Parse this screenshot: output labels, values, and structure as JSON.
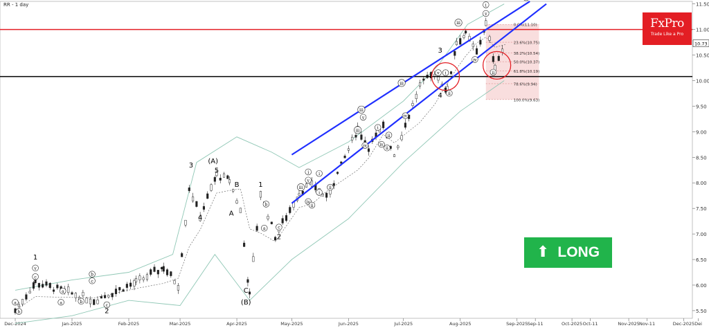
{
  "title": "RR - 1 day",
  "brand": {
    "name": "FxPro",
    "tagline": "Trade Like a Pro",
    "color": "#e31e24"
  },
  "signal": {
    "label": "LONG",
    "arrow": "⬆",
    "color": "#21b44b"
  },
  "chart_data": {
    "type": "candlestick",
    "title": "RR - 1 day",
    "x_labels": [
      "Dec-2024",
      "Jan-2025",
      "Feb-2025",
      "Mar-2025",
      "Apr-2025",
      "May-2025",
      "Jun-2025",
      "Jul-2025",
      "Aug-2025",
      "Sep-2025",
      "Sep-11",
      "Oct-2025",
      "Oct-11",
      "Nov-2025",
      "Nov-11",
      "Dec-2025",
      "Dei"
    ],
    "x_label_days": [
      0,
      31,
      62,
      90,
      121,
      151,
      182,
      212,
      243,
      274,
      284,
      304,
      314,
      335,
      345,
      365,
      373
    ],
    "y_ticks": [
      "11.50",
      "11.00",
      "10.50",
      "10.00",
      "9.50",
      "9.00",
      "8.50",
      "8.00",
      "7.50",
      "7.00",
      "6.50",
      "6.00",
      "5.50"
    ],
    "ylim": [
      5.35,
      11.55
    ],
    "last_price": "10.73",
    "key_points": [
      {
        "date": "2024-12-01",
        "price": 5.5
      },
      {
        "date": "2024-12-12",
        "price": 6.05
      },
      {
        "date": "2025-01-13",
        "price": 5.7
      },
      {
        "date": "2025-02-05",
        "price": 6.05
      },
      {
        "date": "2025-02-20",
        "price": 6.35
      },
      {
        "date": "2025-02-28",
        "price": 6.0
      },
      {
        "date": "2025-03-06",
        "price": 7.9
      },
      {
        "date": "2025-03-12",
        "price": 7.35
      },
      {
        "date": "2025-03-21",
        "price": 8.15
      },
      {
        "date": "2025-03-28",
        "price": 8.05
      },
      {
        "date": "2025-04-03",
        "price": 7.45
      },
      {
        "date": "2025-04-08",
        "price": 5.8
      },
      {
        "date": "2025-04-14",
        "price": 7.8
      },
      {
        "date": "2025-04-22",
        "price": 6.95
      },
      {
        "date": "2025-05-05",
        "price": 7.8
      },
      {
        "date": "2025-05-12",
        "price": 8.0
      },
      {
        "date": "2025-05-20",
        "price": 7.7
      },
      {
        "date": "2025-06-06",
        "price": 9.05
      },
      {
        "date": "2025-06-12",
        "price": 8.7
      },
      {
        "date": "2025-06-20",
        "price": 9.1
      },
      {
        "date": "2025-06-26",
        "price": 8.55
      },
      {
        "date": "2025-07-10",
        "price": 9.9
      },
      {
        "date": "2025-07-18",
        "price": 10.15
      },
      {
        "date": "2025-07-25",
        "price": 9.8
      },
      {
        "date": "2025-07-30",
        "price": 10.75
      },
      {
        "date": "2025-08-04",
        "price": 10.9
      },
      {
        "date": "2025-08-10",
        "price": 10.55
      },
      {
        "date": "2025-08-15",
        "price": 11.1
      },
      {
        "date": "2025-08-20",
        "price": 10.3
      },
      {
        "date": "2025-08-26",
        "price": 10.73
      }
    ],
    "horizontal_levels": [
      {
        "price": 11.0,
        "color": "#e31e24"
      },
      {
        "price": 10.08,
        "color": "#000000"
      }
    ],
    "fibonacci": {
      "start_date": "2025-08-15",
      "end_date": "2025-09-13",
      "levels": [
        {
          "label": "0.0%(11.10)",
          "price": 11.1
        },
        {
          "label": "23.6%(10.75)",
          "price": 10.75
        },
        {
          "label": "38.2%(10.54)",
          "price": 10.54
        },
        {
          "label": "50.0%(10.37)",
          "price": 10.37
        },
        {
          "label": "61.8%(10.19)",
          "price": 10.19
        },
        {
          "label": "78.6%(9.94)",
          "price": 9.94
        },
        {
          "label": "100.0%(9.63)",
          "price": 9.63
        }
      ]
    },
    "channel": {
      "color": "#1f2fff",
      "upper": [
        {
          "date": "2025-05-01",
          "price": 8.55
        },
        {
          "date": "2025-09-08",
          "price": 11.55
        }
      ],
      "lower": [
        {
          "date": "2025-05-01",
          "price": 7.6
        },
        {
          "date": "2025-09-17",
          "price": 11.5
        }
      ]
    },
    "bands": {
      "upper": [
        [
          "2024-12-01",
          5.9
        ],
        [
          "2025-01-01",
          6.1
        ],
        [
          "2025-02-01",
          6.25
        ],
        [
          "2025-02-25",
          6.6
        ],
        [
          "2025-03-10",
          8.4
        ],
        [
          "2025-04-01",
          8.9
        ],
        [
          "2025-04-20",
          8.6
        ],
        [
          "2025-05-05",
          8.3
        ],
        [
          "2025-06-01",
          8.8
        ],
        [
          "2025-07-01",
          9.6
        ],
        [
          "2025-07-20",
          10.3
        ],
        [
          "2025-08-05",
          11.1
        ],
        [
          "2025-08-25",
          11.5
        ]
      ],
      "lower": [
        [
          "2024-12-01",
          5.25
        ],
        [
          "2025-01-01",
          5.4
        ],
        [
          "2025-02-01",
          5.7
        ],
        [
          "2025-03-01",
          5.6
        ],
        [
          "2025-03-20",
          6.6
        ],
        [
          "2025-04-08",
          5.7
        ],
        [
          "2025-05-01",
          6.5
        ],
        [
          "2025-06-01",
          7.3
        ],
        [
          "2025-07-01",
          8.4
        ],
        [
          "2025-08-01",
          9.4
        ],
        [
          "2025-08-25",
          10.0
        ]
      ]
    },
    "circles": [
      {
        "date": "2025-07-24",
        "price": 10.08
      },
      {
        "date": "2025-08-21",
        "price": 10.3
      }
    ],
    "wave_labels": [
      {
        "text": "1",
        "date": "2024-12-12",
        "price": 6.5
      },
      {
        "text": "v",
        "date": "2024-12-12",
        "price": 6.3,
        "circled": true
      },
      {
        "text": "c",
        "date": "2024-12-12",
        "price": 6.13,
        "circled": true
      },
      {
        "text": "a",
        "date": "2024-12-01",
        "price": 5.63,
        "circled": true
      },
      {
        "text": "b",
        "date": "2024-12-03",
        "price": 5.45,
        "circled": true
      },
      {
        "text": "a",
        "date": "2024-12-27",
        "price": 5.85,
        "circled": true
      },
      {
        "text": "a",
        "date": "2024-12-26",
        "price": 5.63,
        "circled": true
      },
      {
        "text": "b",
        "date": "2025-01-06",
        "price": 5.65,
        "circled": true
      },
      {
        "text": "b",
        "date": "2025-01-12",
        "price": 6.18,
        "circled": true
      },
      {
        "text": "c",
        "date": "2025-01-12",
        "price": 6.05,
        "circled": true
      },
      {
        "text": "c",
        "date": "2025-01-20",
        "price": 5.58,
        "circled": true
      },
      {
        "text": "2",
        "date": "2025-01-20",
        "price": 5.45
      },
      {
        "text": "3",
        "date": "2025-03-07",
        "price": 8.3
      },
      {
        "text": "4",
        "date": "2025-03-12",
        "price": 7.28
      },
      {
        "text": "(A)",
        "date": "2025-03-19",
        "price": 8.38
      },
      {
        "text": "5",
        "date": "2025-03-21",
        "price": 8.2
      },
      {
        "text": "B",
        "date": "2025-04-01",
        "price": 7.92
      },
      {
        "text": "A",
        "date": "2025-03-29",
        "price": 7.36
      },
      {
        "text": "1",
        "date": "2025-04-14",
        "price": 7.92
      },
      {
        "text": "b",
        "date": "2025-04-17",
        "price": 7.55,
        "circled": true
      },
      {
        "text": "a",
        "date": "2025-04-16",
        "price": 7.08,
        "circled": true
      },
      {
        "text": "c",
        "date": "2025-04-24",
        "price": 7.1,
        "circled": true
      },
      {
        "text": "2",
        "date": "2025-04-24",
        "price": 6.9
      },
      {
        "text": "C",
        "date": "2025-04-06",
        "price": 5.85
      },
      {
        "text": "(B)",
        "date": "2025-04-06",
        "price": 5.62
      },
      {
        "text": "i",
        "date": "2025-05-10",
        "price": 8.18,
        "circled": true
      },
      {
        "text": "v",
        "date": "2025-05-10",
        "price": 8.02,
        "circled": true
      },
      {
        "text": "iii",
        "date": "2025-05-06",
        "price": 7.88,
        "circled": true
      },
      {
        "text": "iv",
        "date": "2025-05-10",
        "price": 7.6,
        "circled": true
      },
      {
        "text": "ii",
        "date": "2025-05-12",
        "price": 7.53,
        "circled": true
      },
      {
        "text": "i",
        "date": "2025-05-16",
        "price": 8.15,
        "circled": true
      },
      {
        "text": "i",
        "date": "2025-05-16",
        "price": 7.78,
        "circled": true
      },
      {
        "text": "ii",
        "date": "2025-05-22",
        "price": 7.88,
        "circled": true
      },
      {
        "text": "iii",
        "date": "2025-06-08",
        "price": 9.4,
        "circled": true
      },
      {
        "text": "v",
        "date": "2025-06-09",
        "price": 9.25,
        "circled": true
      },
      {
        "text": "iii",
        "date": "2025-06-06",
        "price": 9.0,
        "circled": true
      },
      {
        "text": "iv",
        "date": "2025-06-10",
        "price": 8.7,
        "circled": true
      },
      {
        "text": "i",
        "date": "2025-06-17",
        "price": 9.05,
        "circled": true
      },
      {
        "text": "ii",
        "date": "2025-06-23",
        "price": 8.9,
        "circled": true
      },
      {
        "text": "ii",
        "date": "2025-06-22",
        "price": 8.65,
        "circled": true
      },
      {
        "text": "iv",
        "date": "2025-06-19",
        "price": 8.72,
        "circled": true
      },
      {
        "text": "iv",
        "date": "2025-07-02",
        "price": 9.28,
        "circled": true
      },
      {
        "text": "iii",
        "date": "2025-06-30",
        "price": 9.92,
        "circled": true
      },
      {
        "text": "v",
        "date": "2025-07-20",
        "price": 10.12,
        "circled": true
      },
      {
        "text": "i",
        "date": "2025-07-24",
        "price": 10.12,
        "circled": true
      },
      {
        "text": "3",
        "date": "2025-07-21",
        "price": 10.55
      },
      {
        "text": "iii",
        "date": "2025-07-31",
        "price": 11.1,
        "circled": true
      },
      {
        "text": "ii",
        "date": "2025-07-26",
        "price": 9.72,
        "circled": true
      },
      {
        "text": "4",
        "date": "2025-07-21",
        "price": 9.67
      },
      {
        "text": "i",
        "date": "2025-08-15",
        "price": 11.45,
        "circled": true
      },
      {
        "text": "v",
        "date": "2025-08-15",
        "price": 11.28,
        "circled": true
      },
      {
        "text": "iv",
        "date": "2025-08-09",
        "price": 10.38,
        "circled": true
      },
      {
        "text": "ii",
        "date": "2025-08-19",
        "price": 10.13,
        "circled": true
      },
      {
        "text": "iii",
        "date": "2025-09-06",
        "price": 11.6,
        "circled": true
      }
    ]
  }
}
